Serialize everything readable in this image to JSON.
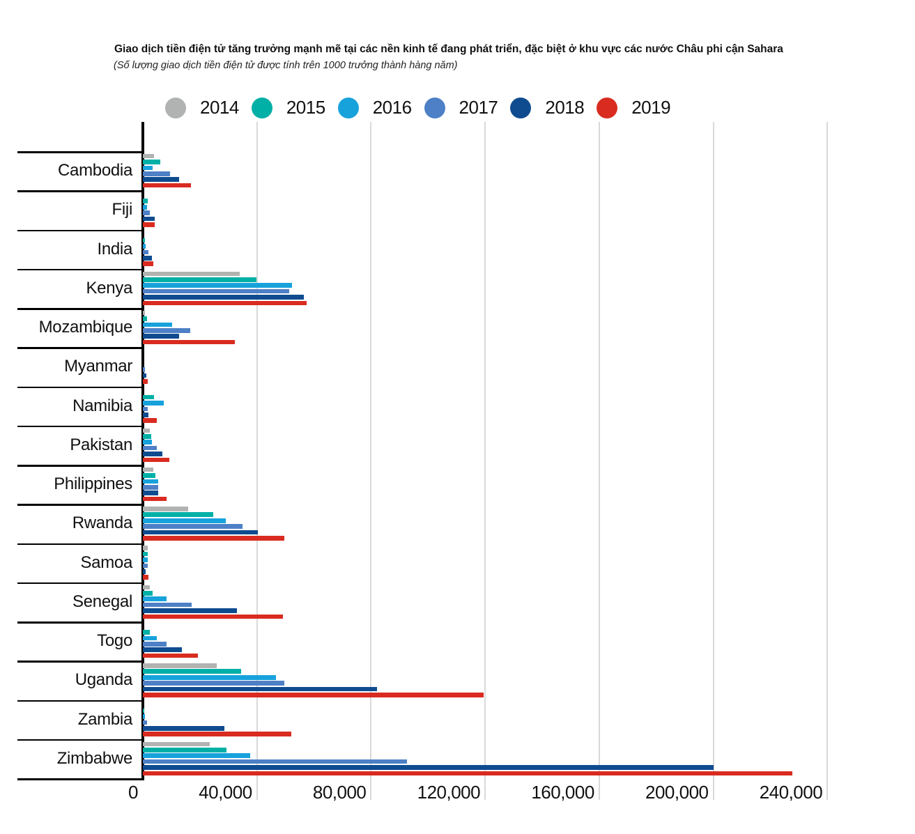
{
  "chart_data": {
    "type": "bar",
    "orientation": "horizontal",
    "title": "Giao dịch tiền điện tử  tăng trưởng mạnh mẽ tại các nền kinh tế đang phát triển, đặc biệt ở khu vực các nước Châu phi cận Sahara",
    "subtitle": "(Số lượng giao dịch tiền điện tử được tính trên 1000 trưởng thành hàng năm)",
    "legend_position": "top",
    "grid": true,
    "categories": [
      "Cambodia",
      "Fiji",
      "India",
      "Kenya",
      "Mozambique",
      "Myanmar",
      "Namibia",
      "Pakistan",
      "Philippines",
      "Rwanda",
      "Samoa",
      "Senegal",
      "Togo",
      "Uganda",
      "Zambia",
      "Zimbabwe"
    ],
    "series": [
      {
        "name": "2014",
        "color": "#b1b3b3",
        "values": [
          3900,
          0,
          0,
          34000,
          800,
          0,
          0,
          2400,
          3600,
          15900,
          1700,
          2400,
          0,
          25800,
          0,
          23400
        ]
      },
      {
        "name": "2015",
        "color": "#00b0a6",
        "values": [
          6000,
          1800,
          800,
          39800,
          1500,
          0,
          3900,
          2900,
          4400,
          24700,
          1700,
          3400,
          2400,
          34500,
          600,
          29400
        ]
      },
      {
        "name": "2016",
        "color": "#17a2dc",
        "values": [
          3500,
          1500,
          1000,
          52400,
          10300,
          0,
          7300,
          3200,
          5300,
          29100,
          1700,
          8300,
          4900,
          46600,
          800,
          37700
        ]
      },
      {
        "name": "2017",
        "color": "#4d80c6",
        "values": [
          9500,
          2400,
          1900,
          51300,
          16500,
          700,
          1700,
          4900,
          5300,
          34900,
          1700,
          17000,
          8300,
          49700,
          1500,
          92500
        ]
      },
      {
        "name": "2018",
        "color": "#0f4b8f",
        "values": [
          12700,
          4100,
          3200,
          56500,
          12700,
          1100,
          1900,
          6800,
          5300,
          40300,
          1000,
          33000,
          13600,
          82200,
          28700,
          200000
        ]
      },
      {
        "name": "2019",
        "color": "#d92b20",
        "values": [
          16800,
          4100,
          3600,
          57400,
          32200,
          1700,
          4900,
          9200,
          8300,
          49700,
          1900,
          49100,
          19400,
          119600,
          52000,
          227700
        ]
      }
    ],
    "x_axis": {
      "ticks": [
        {
          "label": "0",
          "value": 0
        },
        {
          "label": "40,000",
          "value": 40000
        },
        {
          "label": "80,000",
          "value": 80000
        },
        {
          "label": "120,000",
          "value": 120000
        },
        {
          "label": "160,000",
          "value": 160000
        },
        {
          "label": "200,000",
          "value": 200000
        },
        {
          "label": "240,000",
          "value": 240000
        }
      ],
      "range": [
        0,
        257000
      ]
    }
  }
}
